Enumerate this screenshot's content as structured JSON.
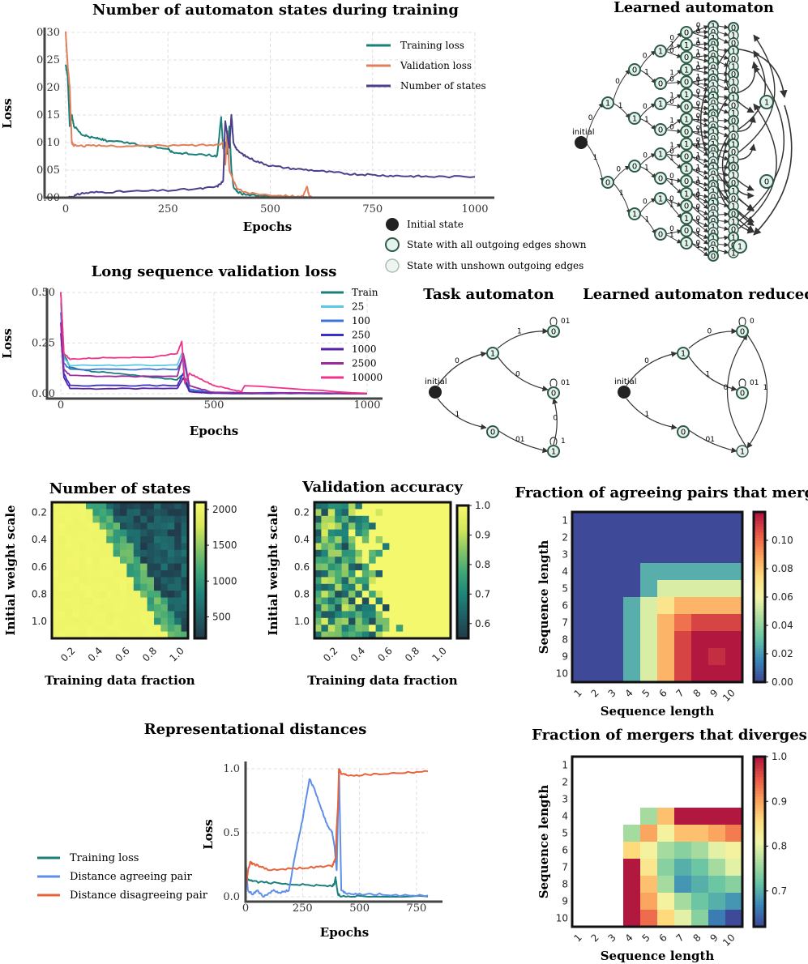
{
  "chart_data": [
    {
      "type": "line",
      "title": "Number of automaton states during training",
      "xlabel": "Epochs",
      "ylabel": "Loss",
      "xlim": [
        0,
        1000
      ],
      "ylim": [
        0,
        0.3
      ],
      "xticks": [
        0,
        250,
        500,
        750,
        1000
      ],
      "yticks": [
        "0.00",
        "0.05",
        "0.10",
        "0.15",
        "0.20",
        "0.25",
        "0.30"
      ],
      "legend_position": "top-right",
      "series": [
        {
          "name": "Training loss",
          "color": "#1b7f7a",
          "x": [
            0,
            5,
            10,
            15,
            20,
            40,
            60,
            80,
            100,
            150,
            200,
            250,
            260,
            300,
            350,
            370,
            380,
            385,
            390,
            395,
            400,
            405,
            410,
            420,
            440,
            480,
            520,
            560,
            590
          ],
          "y": [
            0.24,
            0.22,
            0.13,
            0.15,
            0.13,
            0.115,
            0.11,
            0.108,
            0.103,
            0.1,
            0.093,
            0.09,
            0.082,
            0.08,
            0.077,
            0.075,
            0.145,
            0.09,
            0.1,
            0.08,
            0.13,
            0.05,
            0.02,
            0.01,
            0.005,
            0.003,
            0.002,
            0.001,
            0.001
          ]
        },
        {
          "name": "Validation loss",
          "color": "#e07f5a",
          "x": [
            0,
            5,
            10,
            15,
            20,
            50,
            100,
            200,
            300,
            370,
            385,
            390,
            395,
            400,
            410,
            420,
            450,
            500,
            550,
            580,
            590,
            595,
            600
          ],
          "y": [
            0.3,
            0.24,
            0.2,
            0.1,
            0.095,
            0.094,
            0.094,
            0.094,
            0.095,
            0.096,
            0.1,
            0.06,
            0.12,
            0.05,
            0.03,
            0.015,
            0.008,
            0.005,
            0.003,
            0.002,
            0.02,
            0.003,
            0.001
          ]
        },
        {
          "name": "Number of states",
          "color": "#4b3f8c",
          "x": [
            0,
            20,
            40,
            80,
            150,
            250,
            330,
            370,
            385,
            390,
            400,
            405,
            410,
            420,
            440,
            470,
            500,
            550,
            600,
            650,
            700,
            750,
            800,
            850,
            900,
            1000
          ],
          "y": [
            0.0,
            0.003,
            0.008,
            0.01,
            0.011,
            0.013,
            0.016,
            0.02,
            0.03,
            0.14,
            0.09,
            0.15,
            0.1,
            0.085,
            0.075,
            0.065,
            0.058,
            0.053,
            0.05,
            0.046,
            0.043,
            0.041,
            0.04,
            0.039,
            0.038,
            0.038
          ]
        }
      ]
    },
    {
      "type": "line",
      "title": "Long sequence validation loss",
      "xlabel": "Epochs",
      "ylabel": "Loss",
      "xlim": [
        0,
        1000
      ],
      "ylim": [
        0,
        0.5
      ],
      "xticks": [
        0,
        500,
        1000
      ],
      "yticks": [
        "0.00",
        "0.25",
        "0.50"
      ],
      "legend_position": "top-right",
      "series": [
        {
          "name": "Train",
          "color": "#1b7f7a",
          "x": [
            0,
            10,
            30,
            100,
            200,
            300,
            380,
            400,
            420,
            500,
            1000
          ],
          "y": [
            0.5,
            0.2,
            0.13,
            0.11,
            0.1,
            0.08,
            0.07,
            0.1,
            0.01,
            0.003,
            0.001
          ]
        },
        {
          "name": "25",
          "color": "#5bc8e8",
          "x": [
            0,
            10,
            30,
            200,
            380,
            395,
            405,
            420,
            500,
            1000
          ],
          "y": [
            0.45,
            0.18,
            0.14,
            0.14,
            0.14,
            0.2,
            0.05,
            0.02,
            0.005,
            0.001
          ]
        },
        {
          "name": "100",
          "color": "#3d73d6",
          "x": [
            0,
            10,
            30,
            200,
            380,
            400,
            420,
            500,
            1000
          ],
          "y": [
            0.4,
            0.15,
            0.12,
            0.12,
            0.12,
            0.18,
            0.02,
            0.005,
            0.001
          ]
        },
        {
          "name": "250",
          "color": "#3b2fc9",
          "x": [
            0,
            10,
            30,
            200,
            380,
            400,
            420,
            500,
            1000
          ],
          "y": [
            0.35,
            0.1,
            0.04,
            0.04,
            0.04,
            0.1,
            0.01,
            0.002,
            0.001
          ]
        },
        {
          "name": "1000",
          "color": "#5522a8",
          "x": [
            0,
            10,
            30,
            200,
            380,
            400,
            420,
            500,
            1000
          ],
          "y": [
            0.3,
            0.08,
            0.025,
            0.025,
            0.025,
            0.08,
            0.01,
            0.002,
            0.001
          ]
        },
        {
          "name": "2500",
          "color": "#9a2a9e",
          "x": [
            0,
            10,
            30,
            200,
            380,
            400,
            420,
            500,
            1000
          ],
          "y": [
            0.35,
            0.12,
            0.09,
            0.085,
            0.085,
            0.2,
            0.04,
            0.005,
            0.001
          ]
        },
        {
          "name": "10000",
          "color": "#f0338a",
          "x": [
            0,
            10,
            30,
            100,
            200,
            300,
            380,
            395,
            405,
            420,
            460,
            500,
            560,
            590,
            600,
            1000
          ],
          "y": [
            0.5,
            0.2,
            0.17,
            0.175,
            0.18,
            0.18,
            0.2,
            0.26,
            0.05,
            0.1,
            0.07,
            0.04,
            0.02,
            0.01,
            0.04,
            0.002
          ]
        }
      ]
    },
    {
      "type": "heatmap",
      "title": "Number of states",
      "xlabel": "Training data fraction",
      "ylabel": "Initial weight scale",
      "xticks": [
        "0.2",
        "0.4",
        "0.6",
        "0.8",
        "1.0"
      ],
      "yticks": [
        "0.2",
        "0.4",
        "0.6",
        "0.8",
        "1.0"
      ],
      "colorbar": {
        "ticks": [
          "500",
          "1000",
          "1500",
          "2000"
        ],
        "range": [
          200,
          2100
        ]
      },
      "rows": 20,
      "cols": 20
    },
    {
      "type": "heatmap",
      "title": "Validation accuracy",
      "xlabel": "Training data fraction",
      "ylabel": "Initial weight scale",
      "xticks": [
        "0.2",
        "0.4",
        "0.6",
        "0.8",
        "1.0"
      ],
      "yticks": [
        "0.2",
        "0.4",
        "0.6",
        "0.8",
        "1.0"
      ],
      "colorbar": {
        "ticks": [
          "0.6",
          "0.7",
          "0.8",
          "0.9",
          "1.0"
        ],
        "range": [
          0.55,
          1.0
        ]
      },
      "rows": 20,
      "cols": 20
    },
    {
      "type": "heatmap",
      "title": "Fraction of agreeing pairs that merge",
      "xlabel": "Sequence length",
      "ylabel": "Sequence length",
      "xticks": [
        "1",
        "2",
        "3",
        "4",
        "5",
        "6",
        "7",
        "8",
        "9",
        "10"
      ],
      "yticks": [
        "1",
        "2",
        "3",
        "4",
        "5",
        "6",
        "7",
        "8",
        "9",
        "10"
      ],
      "colorbar": {
        "ticks": [
          "0.00",
          "0.02",
          "0.04",
          "0.06",
          "0.08",
          "0.10"
        ],
        "range": [
          0,
          0.12
        ]
      },
      "values": [
        [
          0,
          0,
          0,
          0,
          0,
          0,
          0,
          0,
          0,
          0
        ],
        [
          0,
          0,
          0,
          0,
          0,
          0,
          0,
          0,
          0,
          0
        ],
        [
          0,
          0,
          0,
          0,
          0,
          0,
          0,
          0,
          0,
          0
        ],
        [
          0,
          0,
          0,
          0,
          0.025,
          0.025,
          0.025,
          0.025,
          0.025,
          0.025
        ],
        [
          0,
          0,
          0,
          0,
          0.025,
          0.055,
          0.055,
          0.055,
          0.055,
          0.055
        ],
        [
          0,
          0,
          0,
          0.025,
          0.055,
          0.07,
          0.085,
          0.085,
          0.085,
          0.085
        ],
        [
          0,
          0,
          0,
          0.025,
          0.055,
          0.085,
          0.1,
          0.11,
          0.11,
          0.11
        ],
        [
          0,
          0,
          0,
          0.025,
          0.055,
          0.085,
          0.11,
          0.12,
          0.12,
          0.12
        ],
        [
          0,
          0,
          0,
          0.025,
          0.055,
          0.085,
          0.11,
          0.12,
          0.115,
          0.12
        ],
        [
          0,
          0,
          0,
          0.025,
          0.055,
          0.085,
          0.11,
          0.12,
          0.12,
          0.12
        ]
      ]
    },
    {
      "type": "heatmap",
      "title": "Fraction of mergers that diverges",
      "xlabel": "Sequence length",
      "ylabel": "Sequence length",
      "xticks": [
        "1",
        "2",
        "3",
        "4",
        "5",
        "6",
        "7",
        "8",
        "9",
        "10"
      ],
      "yticks": [
        "1",
        "2",
        "3",
        "4",
        "5",
        "6",
        "7",
        "8",
        "9",
        "10"
      ],
      "colorbar": {
        "ticks": [
          "0.7",
          "0.8",
          "0.9",
          "1.0"
        ],
        "range": [
          0.62,
          1.0
        ]
      },
      "values": [
        [
          null,
          null,
          null,
          null,
          null,
          null,
          null,
          null,
          null,
          null
        ],
        [
          null,
          null,
          null,
          null,
          null,
          null,
          null,
          null,
          null,
          null
        ],
        [
          null,
          null,
          null,
          null,
          null,
          null,
          null,
          null,
          null,
          null
        ],
        [
          null,
          null,
          null,
          null,
          0.76,
          0.88,
          1.0,
          1.0,
          1.0,
          1.0
        ],
        [
          null,
          null,
          null,
          0.76,
          0.9,
          0.82,
          0.88,
          0.88,
          0.9,
          0.93
        ],
        [
          null,
          null,
          null,
          0.86,
          0.82,
          0.76,
          0.74,
          0.76,
          0.8,
          0.82
        ],
        [
          null,
          null,
          null,
          1.0,
          0.84,
          0.74,
          0.7,
          0.72,
          0.76,
          0.8
        ],
        [
          null,
          null,
          null,
          1.0,
          0.88,
          0.76,
          0.68,
          0.7,
          0.72,
          0.74
        ],
        [
          null,
          null,
          null,
          1.0,
          0.9,
          0.82,
          0.76,
          0.72,
          0.7,
          0.68
        ],
        [
          null,
          null,
          null,
          1.0,
          0.94,
          0.86,
          0.8,
          0.74,
          0.66,
          0.62
        ]
      ]
    },
    {
      "type": "line",
      "title": "Representational distances",
      "xlabel": "Epochs",
      "ylabel": "Loss",
      "xlim": [
        0,
        800
      ],
      "ylim": [
        0,
        1.0
      ],
      "xticks": [
        0,
        250,
        500,
        750
      ],
      "yticks": [
        "0.0",
        "0.5",
        "1.0"
      ],
      "legend_position": "left",
      "series": [
        {
          "name": "Training loss",
          "color": "#1b7f7a",
          "x": [
            0,
            5,
            10,
            30,
            100,
            200,
            300,
            380,
            390,
            395,
            405,
            420,
            500,
            800
          ],
          "y": [
            0.3,
            0.15,
            0.13,
            0.12,
            0.11,
            0.1,
            0.09,
            0.085,
            0.1,
            0.15,
            0.02,
            0.005,
            0.002,
            0.001
          ]
        },
        {
          "name": "Distance agreeing pair",
          "color": "#5f8fe8",
          "x": [
            0,
            10,
            30,
            50,
            80,
            120,
            150,
            190,
            220,
            250,
            280,
            300,
            330,
            360,
            380,
            390,
            400,
            410,
            420,
            450,
            500,
            600,
            700,
            800
          ],
          "y": [
            0.3,
            0.05,
            0.02,
            0.05,
            0.0,
            0.05,
            0.03,
            0.05,
            0.35,
            0.6,
            0.92,
            0.85,
            0.7,
            0.55,
            0.5,
            0.4,
            0.2,
            1.0,
            0.05,
            0.02,
            0.02,
            0.02,
            0.01,
            0.01
          ]
        },
        {
          "name": "Distance disagreeing pair",
          "color": "#e8623a",
          "x": [
            0,
            10,
            20,
            30,
            60,
            100,
            200,
            300,
            380,
            395,
            400,
            405,
            410,
            420,
            450,
            500,
            600,
            700,
            800
          ],
          "y": [
            0.05,
            0.2,
            0.27,
            0.26,
            0.24,
            0.21,
            0.22,
            0.23,
            0.24,
            0.3,
            0.55,
            0.7,
            1.0,
            0.96,
            0.95,
            0.95,
            0.96,
            0.97,
            0.98
          ]
        }
      ]
    }
  ],
  "automaton_panels": {
    "learned_title": "Learned automaton",
    "task_title": "Task automaton",
    "reduced_title": "Learned automaton reduced",
    "initial_label": "initial",
    "legend": {
      "initial": "Initial state",
      "shown": "State with all outgoing edges shown",
      "unshown": "State with unshown outgoing edges"
    },
    "node_values": [
      "0",
      "1"
    ],
    "edge_values": [
      "0",
      "1",
      "01"
    ]
  },
  "colors": {
    "node_fill": "#e4f4ec",
    "node_fill_light": "#eaf2ee",
    "node_stroke": "#2e5a48",
    "initial_fill": "#222222"
  }
}
